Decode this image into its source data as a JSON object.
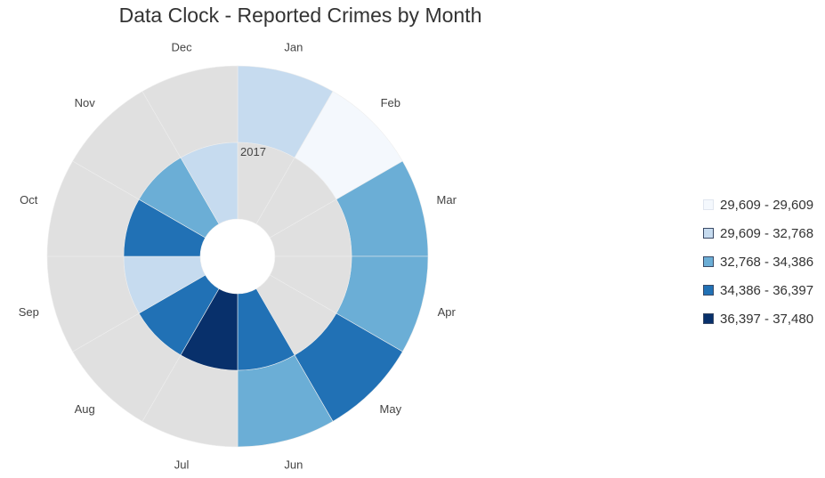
{
  "chart_data": {
    "type": "radial-heatmap",
    "title": "Data Clock - Reported Crimes by Month",
    "months": [
      "Jan",
      "Feb",
      "Mar",
      "Apr",
      "May",
      "Jun",
      "Jul",
      "Aug",
      "Sep",
      "Oct",
      "Nov",
      "Dec"
    ],
    "rings": [
      {
        "year": "2017",
        "ring": "outer",
        "color_bins": [
          1,
          0,
          2,
          2,
          3,
          2,
          null,
          null,
          null,
          null,
          null,
          null
        ]
      },
      {
        "year": "",
        "ring": "inner",
        "color_bins": [
          null,
          null,
          null,
          null,
          null,
          3,
          4,
          3,
          1,
          3,
          2,
          1
        ]
      }
    ],
    "year_label": "2017",
    "missing_color": "#e0e0e0",
    "legend": [
      {
        "label": "29,609 - 29,609",
        "color": "#f4f8fd"
      },
      {
        "label": "29,609 - 32,768",
        "color": "#c6dbef"
      },
      {
        "label": "32,768 - 34,386",
        "color": "#6baed6"
      },
      {
        "label": "34,386 - 36,397",
        "color": "#2171b5"
      },
      {
        "label": "36,397 - 37,480",
        "color": "#08306b"
      }
    ],
    "legend_placement": "right"
  }
}
